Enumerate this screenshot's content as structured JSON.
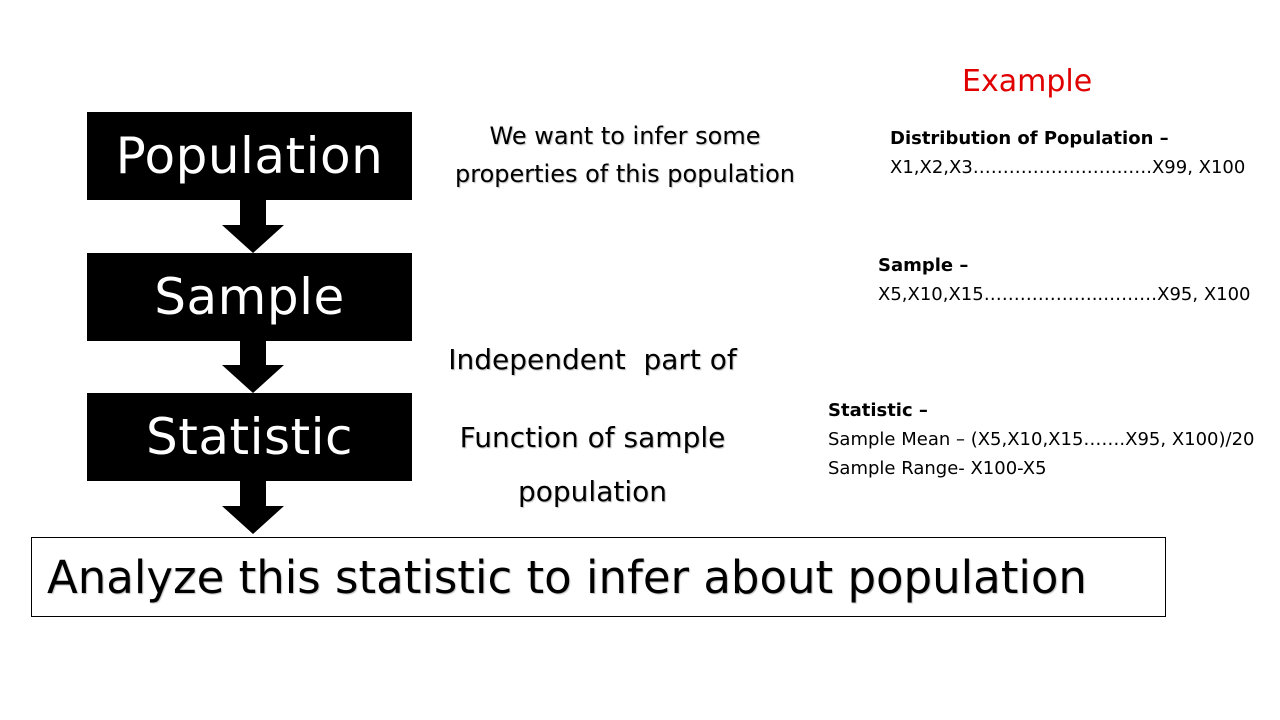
{
  "flow": {
    "population_label": "Population",
    "sample_label": "Sample",
    "statistic_label": "Statistic",
    "conclusion": "Analyze this statistic to infer about population"
  },
  "descriptions": {
    "population": [
      "We want to infer some",
      "properties of this population"
    ],
    "sample": [
      "Independent  part of",
      "population"
    ],
    "statistic": "Function of sample"
  },
  "example": {
    "title": "Example",
    "population_head": "Distribution of Population –",
    "population_values": "X1,X2,X3……………………..….X99, X100",
    "sample_head": "Sample –",
    "sample_values": "X5,X10,X15………………..………X95, X100",
    "statistic_head": "Statistic –",
    "sample_mean": "Sample Mean – (X5,X10,X15…….X95, X100)/20",
    "sample_range": "Sample Range- X100-X5"
  },
  "colors": {
    "box_fill": "#000000",
    "box_text": "#ffffff",
    "example_title": "#e00000"
  }
}
